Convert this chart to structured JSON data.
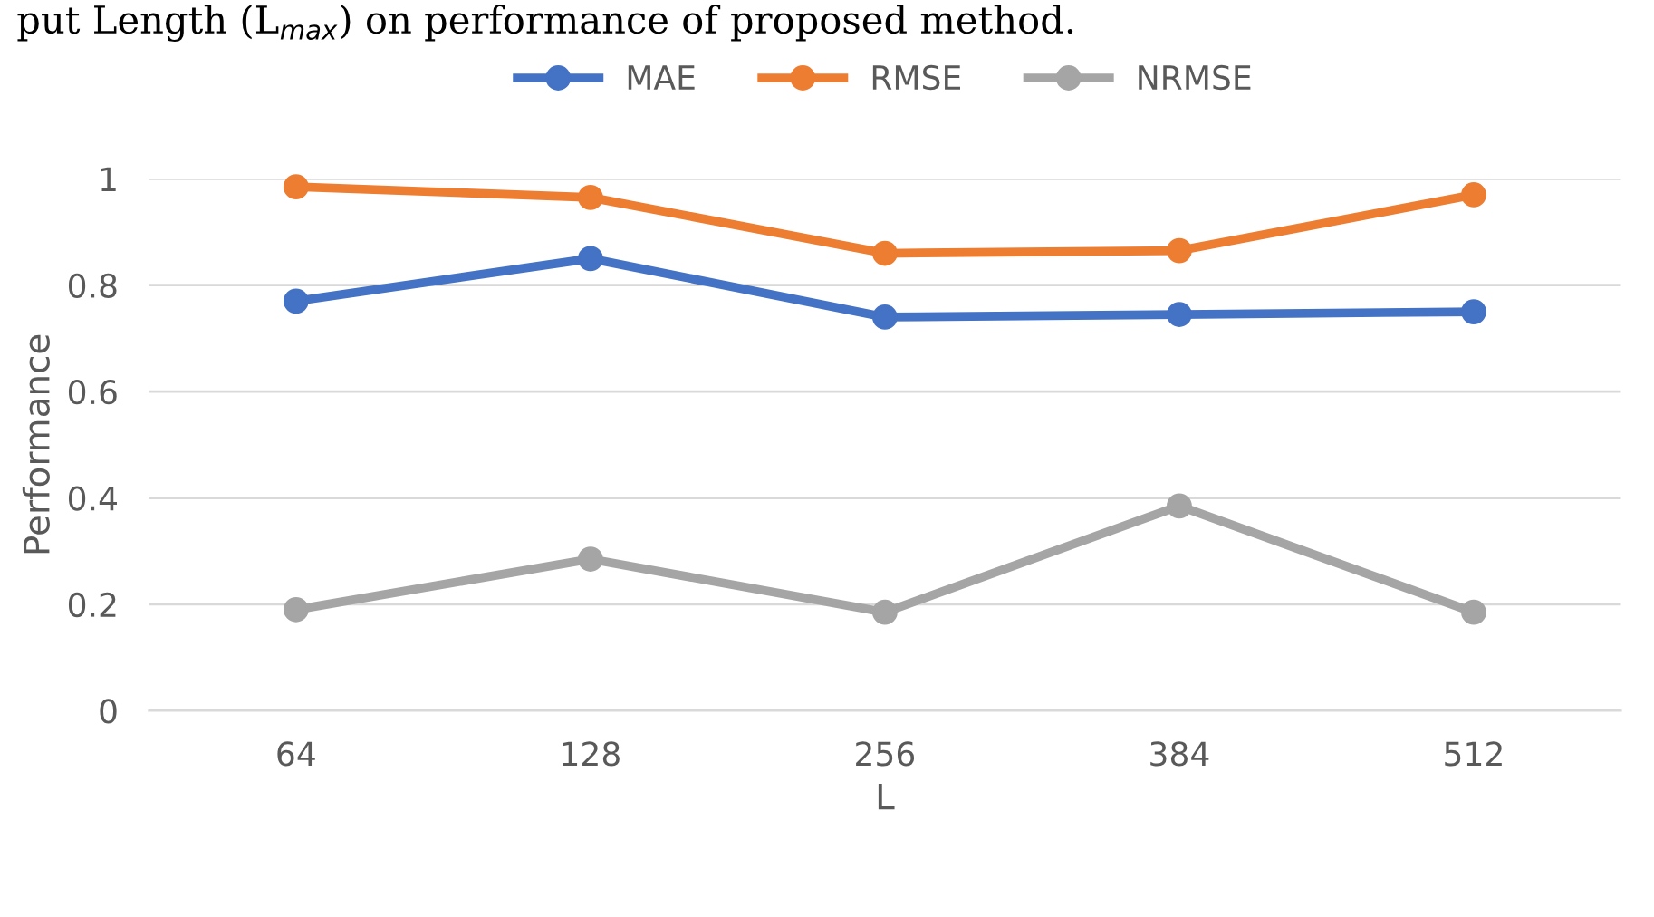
{
  "chart_data": {
    "type": "line",
    "title": "put Length (L$_{max}$) on performance of proposed method.",
    "xlabel": "L",
    "ylabel": "Performance",
    "categories": [
      "64",
      "128",
      "256",
      "384",
      "512"
    ],
    "series": [
      {
        "name": "MAE",
        "color": "#4472c4",
        "values": [
          0.77,
          0.85,
          0.74,
          0.745,
          0.75
        ]
      },
      {
        "name": "RMSE",
        "color": "#ed7d31",
        "values": [
          0.985,
          0.965,
          0.86,
          0.865,
          0.97
        ]
      },
      {
        "name": "NRMSE",
        "color": "#a5a5a5",
        "values": [
          0.19,
          0.285,
          0.185,
          0.385,
          0.185
        ]
      }
    ],
    "ylim": [
      0,
      1
    ],
    "yticks": [
      0,
      0.2,
      0.4,
      0.6,
      0.8,
      1
    ],
    "grid": "y",
    "legend": "top",
    "marker": "circle",
    "line_style": "solid"
  }
}
